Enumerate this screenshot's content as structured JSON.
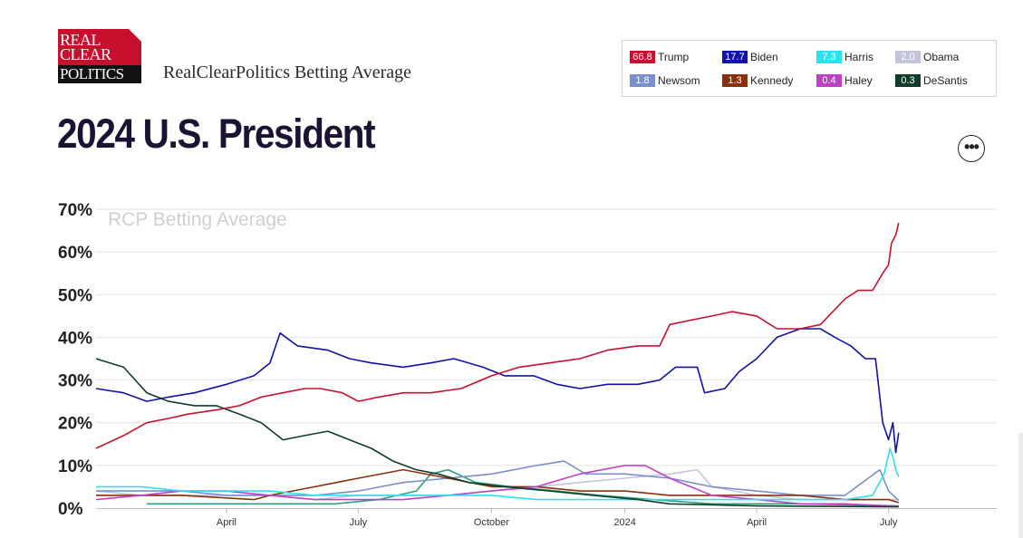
{
  "header": {
    "logo_lines": [
      "REAL",
      "CLEAR",
      "POLITICS"
    ],
    "subtitle": "RealClearPolitics Betting Average",
    "title": "2024 U.S. President",
    "more_button": "•••"
  },
  "legend": [
    {
      "value": "66.8",
      "name": "Trump",
      "color": "#c8102e"
    },
    {
      "value": "17.7",
      "name": "Biden",
      "color": "#1212a8"
    },
    {
      "value": "7.3",
      "name": "Harris",
      "color": "#2ee0f0"
    },
    {
      "value": "2.0",
      "name": "Obama",
      "color": "#c4c4dc"
    },
    {
      "value": "1.8",
      "name": "Newsom",
      "color": "#7a8fcc"
    },
    {
      "value": "1.3",
      "name": "Kennedy",
      "color": "#8b2f0a"
    },
    {
      "value": "0.4",
      "name": "Haley",
      "color": "#c040c8"
    },
    {
      "value": "0.3",
      "name": "DeSantis",
      "color": "#0f3d2a"
    }
  ],
  "chart_data": {
    "type": "line",
    "title": "",
    "watermark": "RCP Betting Average",
    "xlabel": "",
    "ylabel": "",
    "ylim": [
      0,
      70
    ],
    "y_ticks": [
      "0%",
      "10%",
      "20%",
      "30%",
      "40%",
      "50%",
      "60%",
      "70%"
    ],
    "x_range": [
      "2023-01-01",
      "2024-07-10"
    ],
    "x_ticks": [
      {
        "label": "April",
        "date": "2023-04-01"
      },
      {
        "label": "July",
        "date": "2023-07-01"
      },
      {
        "label": "October",
        "date": "2023-10-01"
      },
      {
        "label": "2024",
        "date": "2024-01-01"
      },
      {
        "label": "April",
        "date": "2024-04-01"
      },
      {
        "label": "July",
        "date": "2024-07-01"
      }
    ],
    "grid": true,
    "series": [
      {
        "name": "Trump",
        "color": "#c8102e",
        "points": [
          [
            "2023-01-01",
            14
          ],
          [
            "2023-01-20",
            17
          ],
          [
            "2023-02-05",
            20
          ],
          [
            "2023-02-20",
            21
          ],
          [
            "2023-03-05",
            22
          ],
          [
            "2023-03-25",
            23
          ],
          [
            "2023-04-10",
            24
          ],
          [
            "2023-04-25",
            26
          ],
          [
            "2023-05-10",
            27
          ],
          [
            "2023-05-25",
            28
          ],
          [
            "2023-06-05",
            28
          ],
          [
            "2023-06-20",
            27
          ],
          [
            "2023-07-01",
            25
          ],
          [
            "2023-07-15",
            26
          ],
          [
            "2023-08-01",
            27
          ],
          [
            "2023-08-20",
            27
          ],
          [
            "2023-09-10",
            28
          ],
          [
            "2023-10-01",
            31
          ],
          [
            "2023-10-20",
            33
          ],
          [
            "2023-11-10",
            34
          ],
          [
            "2023-12-01",
            35
          ],
          [
            "2023-12-20",
            37
          ],
          [
            "2024-01-10",
            38
          ],
          [
            "2024-01-25",
            38
          ],
          [
            "2024-02-01",
            43
          ],
          [
            "2024-02-15",
            44
          ],
          [
            "2024-03-01",
            45
          ],
          [
            "2024-03-15",
            46
          ],
          [
            "2024-04-01",
            45
          ],
          [
            "2024-04-15",
            42
          ],
          [
            "2024-05-01",
            42
          ],
          [
            "2024-05-15",
            43
          ],
          [
            "2024-06-01",
            49
          ],
          [
            "2024-06-10",
            51
          ],
          [
            "2024-06-20",
            51
          ],
          [
            "2024-06-27",
            55
          ],
          [
            "2024-07-01",
            57
          ],
          [
            "2024-07-03",
            62
          ],
          [
            "2024-07-06",
            64
          ],
          [
            "2024-07-08",
            66.8
          ]
        ]
      },
      {
        "name": "Biden",
        "color": "#1212a8",
        "points": [
          [
            "2023-01-01",
            28
          ],
          [
            "2023-01-20",
            27
          ],
          [
            "2023-02-05",
            25
          ],
          [
            "2023-02-20",
            26
          ],
          [
            "2023-03-10",
            27
          ],
          [
            "2023-04-01",
            29
          ],
          [
            "2023-04-20",
            31
          ],
          [
            "2023-05-01",
            34
          ],
          [
            "2023-05-08",
            41
          ],
          [
            "2023-05-20",
            38
          ],
          [
            "2023-06-10",
            37
          ],
          [
            "2023-06-25",
            35
          ],
          [
            "2023-07-10",
            34
          ],
          [
            "2023-08-01",
            33
          ],
          [
            "2023-08-20",
            34
          ],
          [
            "2023-09-05",
            35
          ],
          [
            "2023-09-25",
            33
          ],
          [
            "2023-10-10",
            31
          ],
          [
            "2023-10-30",
            31
          ],
          [
            "2023-11-15",
            29
          ],
          [
            "2023-12-01",
            28
          ],
          [
            "2023-12-20",
            29
          ],
          [
            "2024-01-10",
            29
          ],
          [
            "2024-01-25",
            30
          ],
          [
            "2024-02-05",
            33
          ],
          [
            "2024-02-20",
            33
          ],
          [
            "2024-02-25",
            27
          ],
          [
            "2024-03-10",
            28
          ],
          [
            "2024-03-20",
            32
          ],
          [
            "2024-04-01",
            35
          ],
          [
            "2024-04-15",
            40
          ],
          [
            "2024-05-01",
            42
          ],
          [
            "2024-05-15",
            42
          ],
          [
            "2024-05-25",
            40
          ],
          [
            "2024-06-05",
            38
          ],
          [
            "2024-06-15",
            35
          ],
          [
            "2024-06-22",
            35
          ],
          [
            "2024-06-27",
            20
          ],
          [
            "2024-07-01",
            16
          ],
          [
            "2024-07-04",
            20
          ],
          [
            "2024-07-06",
            13
          ],
          [
            "2024-07-08",
            17.7
          ]
        ]
      },
      {
        "name": "Harris",
        "color": "#2ee0f0",
        "points": [
          [
            "2023-01-01",
            5
          ],
          [
            "2023-02-01",
            5
          ],
          [
            "2023-03-01",
            4
          ],
          [
            "2023-04-01",
            4
          ],
          [
            "2023-05-01",
            4
          ],
          [
            "2023-06-01",
            3
          ],
          [
            "2023-07-01",
            3
          ],
          [
            "2023-08-01",
            3
          ],
          [
            "2023-09-01",
            3
          ],
          [
            "2023-10-01",
            3
          ],
          [
            "2023-11-01",
            2
          ],
          [
            "2023-12-01",
            2
          ],
          [
            "2024-01-01",
            2
          ],
          [
            "2024-02-01",
            2
          ],
          [
            "2024-03-01",
            2
          ],
          [
            "2024-04-01",
            2
          ],
          [
            "2024-05-01",
            2
          ],
          [
            "2024-06-01",
            2
          ],
          [
            "2024-06-20",
            3
          ],
          [
            "2024-06-28",
            8
          ],
          [
            "2024-07-02",
            14
          ],
          [
            "2024-07-04",
            12
          ],
          [
            "2024-07-06",
            9
          ],
          [
            "2024-07-08",
            7.3
          ]
        ]
      },
      {
        "name": "Obama",
        "color": "#c4c4dc",
        "points": [
          [
            "2023-01-01",
            4
          ],
          [
            "2023-02-01",
            3
          ],
          [
            "2023-03-01",
            3
          ],
          [
            "2023-04-01",
            3
          ],
          [
            "2023-05-01",
            3
          ],
          [
            "2023-06-01",
            2
          ],
          [
            "2023-07-01",
            3
          ],
          [
            "2023-08-01",
            3
          ],
          [
            "2023-09-01",
            3
          ],
          [
            "2023-10-01",
            4
          ],
          [
            "2023-11-01",
            5
          ],
          [
            "2023-12-01",
            6
          ],
          [
            "2024-01-01",
            7
          ],
          [
            "2024-02-01",
            8
          ],
          [
            "2024-02-20",
            9
          ],
          [
            "2024-03-01",
            5
          ],
          [
            "2024-04-01",
            3
          ],
          [
            "2024-05-01",
            2
          ],
          [
            "2024-06-01",
            2
          ],
          [
            "2024-07-01",
            2
          ],
          [
            "2024-07-08",
            2.0
          ]
        ]
      },
      {
        "name": "Newsom",
        "color": "#7a8fcc",
        "points": [
          [
            "2023-01-01",
            4
          ],
          [
            "2023-02-01",
            4
          ],
          [
            "2023-03-01",
            4
          ],
          [
            "2023-04-01",
            3
          ],
          [
            "2023-05-01",
            3
          ],
          [
            "2023-06-01",
            3
          ],
          [
            "2023-07-01",
            4
          ],
          [
            "2023-08-01",
            6
          ],
          [
            "2023-09-01",
            7
          ],
          [
            "2023-10-01",
            8
          ],
          [
            "2023-11-01",
            10
          ],
          [
            "2023-11-20",
            11
          ],
          [
            "2023-12-05",
            8
          ],
          [
            "2024-01-01",
            8
          ],
          [
            "2024-02-01",
            7
          ],
          [
            "2024-03-01",
            5
          ],
          [
            "2024-04-01",
            4
          ],
          [
            "2024-05-01",
            3
          ],
          [
            "2024-06-01",
            3
          ],
          [
            "2024-06-25",
            9
          ],
          [
            "2024-07-01",
            4
          ],
          [
            "2024-07-08",
            1.8
          ]
        ]
      },
      {
        "name": "Kennedy",
        "color": "#8b2f0a",
        "points": [
          [
            "2023-01-01",
            3
          ],
          [
            "2023-03-01",
            3
          ],
          [
            "2023-04-20",
            2
          ],
          [
            "2023-05-01",
            3
          ],
          [
            "2023-06-01",
            5
          ],
          [
            "2023-07-01",
            7
          ],
          [
            "2023-08-01",
            9
          ],
          [
            "2023-09-01",
            7
          ],
          [
            "2023-10-01",
            5
          ],
          [
            "2023-11-01",
            5
          ],
          [
            "2023-12-01",
            4
          ],
          [
            "2024-01-01",
            4
          ],
          [
            "2024-02-01",
            3
          ],
          [
            "2024-03-01",
            3
          ],
          [
            "2024-04-01",
            3
          ],
          [
            "2024-05-01",
            3
          ],
          [
            "2024-06-01",
            2
          ],
          [
            "2024-07-01",
            2
          ],
          [
            "2024-07-08",
            1.3
          ]
        ]
      },
      {
        "name": "Haley",
        "color": "#c040c8",
        "points": [
          [
            "2023-01-01",
            2
          ],
          [
            "2023-02-01",
            3
          ],
          [
            "2023-03-01",
            4
          ],
          [
            "2023-04-01",
            4
          ],
          [
            "2023-05-01",
            3
          ],
          [
            "2023-06-01",
            2
          ],
          [
            "2023-07-01",
            2
          ],
          [
            "2023-08-01",
            2
          ],
          [
            "2023-09-01",
            3
          ],
          [
            "2023-10-01",
            4
          ],
          [
            "2023-11-01",
            5
          ],
          [
            "2023-12-01",
            8
          ],
          [
            "2024-01-01",
            10
          ],
          [
            "2024-01-15",
            10
          ],
          [
            "2024-02-01",
            7
          ],
          [
            "2024-03-01",
            3
          ],
          [
            "2024-04-01",
            2
          ],
          [
            "2024-05-01",
            1
          ],
          [
            "2024-06-01",
            1
          ],
          [
            "2024-07-08",
            0.4
          ]
        ]
      },
      {
        "name": "DeSantis",
        "color": "#0f3d2a",
        "points": [
          [
            "2023-01-01",
            35
          ],
          [
            "2023-01-20",
            33
          ],
          [
            "2023-02-05",
            27
          ],
          [
            "2023-02-20",
            25
          ],
          [
            "2023-03-10",
            24
          ],
          [
            "2023-03-25",
            24
          ],
          [
            "2023-04-10",
            22
          ],
          [
            "2023-04-25",
            20
          ],
          [
            "2023-05-10",
            16
          ],
          [
            "2023-05-25",
            17
          ],
          [
            "2023-06-10",
            18
          ],
          [
            "2023-06-25",
            16
          ],
          [
            "2023-07-10",
            14
          ],
          [
            "2023-07-25",
            11
          ],
          [
            "2023-08-10",
            9
          ],
          [
            "2023-08-25",
            8
          ],
          [
            "2023-09-15",
            6
          ],
          [
            "2023-10-10",
            5
          ],
          [
            "2023-11-10",
            4
          ],
          [
            "2023-12-10",
            3
          ],
          [
            "2024-01-10",
            2
          ],
          [
            "2024-02-01",
            1
          ],
          [
            "2024-04-01",
            0.5
          ],
          [
            "2024-07-08",
            0.3
          ]
        ]
      },
      {
        "name": "",
        "color": "#2ea07a",
        "points": [
          [
            "2023-02-05",
            1
          ],
          [
            "2023-05-01",
            1
          ],
          [
            "2023-06-15",
            1
          ],
          [
            "2023-07-15",
            2
          ],
          [
            "2023-08-10",
            4
          ],
          [
            "2023-08-20",
            8
          ],
          [
            "2023-09-01",
            9
          ],
          [
            "2023-09-20",
            6
          ],
          [
            "2023-10-15",
            5
          ],
          [
            "2023-11-15",
            4
          ],
          [
            "2023-12-15",
            3
          ],
          [
            "2024-01-20",
            2
          ],
          [
            "2024-03-01",
            1
          ],
          [
            "2024-05-01",
            1
          ],
          [
            "2024-07-08",
            0.5
          ]
        ]
      }
    ]
  }
}
